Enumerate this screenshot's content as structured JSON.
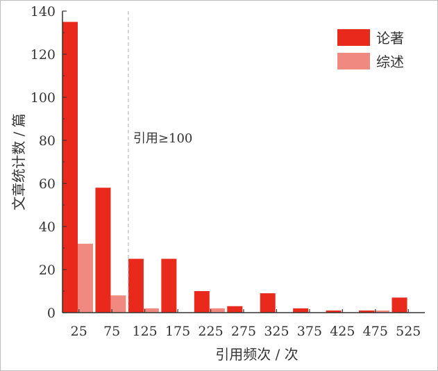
{
  "chart_data": {
    "type": "bar",
    "title": "",
    "xlabel": "引用频次 / 次",
    "ylabel": "文章统计数 / 篇",
    "categories": [
      "25",
      "75",
      "125",
      "175",
      "225",
      "275",
      "325",
      "375",
      "425",
      "475",
      "525"
    ],
    "series": [
      {
        "name": "论著",
        "color": "#e8291c",
        "values": [
          135,
          58,
          25,
          25,
          10,
          3,
          9,
          2,
          1,
          1,
          7
        ]
      },
      {
        "name": "综述",
        "color": "#f08a80",
        "values": [
          32,
          8,
          2,
          0,
          2,
          0,
          0,
          0,
          0,
          1,
          0
        ]
      }
    ],
    "ylim": [
      0,
      140
    ],
    "yticks": [
      0,
      20,
      40,
      60,
      80,
      100,
      120,
      140
    ],
    "legend_position": "top-right",
    "grid": false,
    "annotation": {
      "text": "引用≥100",
      "at_category": 100,
      "line_color": "#aaaaaa"
    }
  }
}
